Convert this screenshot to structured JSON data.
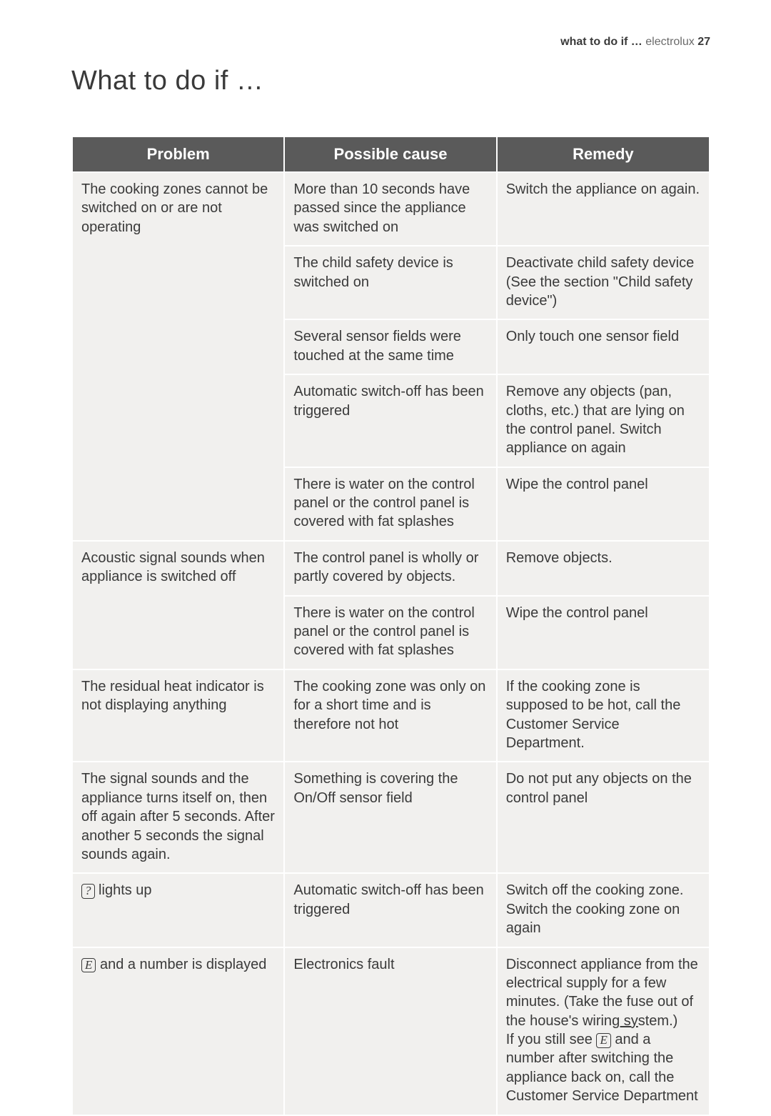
{
  "header": {
    "section": "what to do if …",
    "brand": "electrolux",
    "page": "27"
  },
  "title": "What to do if …",
  "columns": [
    "Problem",
    "Possible cause",
    "Remedy"
  ],
  "rows": [
    {
      "problem": "The cooking zones cannot be switched on or are not operating",
      "cause": "More than 10 seconds have passed since the appliance was switched on",
      "remedy": "Switch the appliance on again.",
      "problem_rowspan": 5
    },
    {
      "cause": "The child safety device is switched on",
      "remedy": "Deactivate child safety device (See the section \"Child safety device\")"
    },
    {
      "cause": "Several sensor fields were touched at the same time",
      "remedy": "Only touch one sensor field"
    },
    {
      "cause": "Automatic switch-off has been triggered",
      "remedy": "Remove any objects (pan, cloths, etc.) that are lying on the control panel. Switch appliance on again"
    },
    {
      "cause": "There is water on the control panel or the control panel is covered with fat splashes",
      "remedy": "Wipe the control panel"
    },
    {
      "problem": "Acoustic signal sounds when appliance is switched off",
      "cause": "The control panel is wholly or partly covered by objects.",
      "remedy": "Remove objects.",
      "problem_rowspan": 2
    },
    {
      "cause": "There is water on the control panel or the control panel is covered with fat splashes",
      "remedy": "Wipe the control panel"
    },
    {
      "problem": "The residual heat indicator is not displaying anything",
      "cause": "The cooking zone was only on for a short time and is therefore not hot",
      "remedy": "If the cooking zone is supposed to be hot, call the Customer Service Department."
    },
    {
      "problem": "The signal sounds and the appliance turns itself on, then off again after 5 seconds. After another 5 seconds the signal sounds again.",
      "cause": "Something is covering the On/Off sensor field",
      "remedy": "Do not put any objects on the control panel"
    },
    {
      "problem_html": "<span class='boxed'>?</span> lights up",
      "cause": "Automatic switch-off has been triggered",
      "remedy": "Switch off the cooking zone. Switch the cooking zone on again"
    },
    {
      "problem_html": "<span class='boxed'>E</span> and a number is displayed",
      "cause": "Electronics fault",
      "remedy_html": "Disconnect appliance from the electrical supply for a few minutes. (Take the fuse out of the house's wirin<span class='under'>g sy</span>stem.)<br>If you still see <span class='boxed'>E</span> and a number after switching the appliance back on, call the Customer Service Department"
    }
  ],
  "style": {
    "header_bg": "#5a5a5a",
    "header_fg": "#ffffff",
    "cell_bg": "#f1f0ee",
    "text_color": "#3a3a3a",
    "font_size_title": 38,
    "font_size_header": 22,
    "font_size_cell": 20,
    "col_widths": [
      "33.3%",
      "33.3%",
      "33.4%"
    ]
  }
}
